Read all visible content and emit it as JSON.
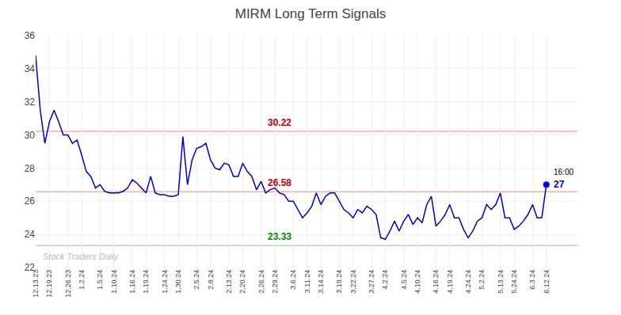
{
  "chart_data": {
    "type": "line",
    "title": "MIRM Long Term Signals",
    "categories": [
      "12.13.23",
      null,
      null,
      "12.19.23",
      null,
      null,
      null,
      "12.26.23",
      null,
      null,
      "1.2.24",
      null,
      null,
      null,
      "1.5.24",
      null,
      null,
      "1.10.24",
      null,
      null,
      null,
      "1.16.24",
      null,
      null,
      "1.19.24",
      null,
      null,
      null,
      "1.24.24",
      null,
      null,
      "1.30.24",
      null,
      null,
      null,
      "2.5.24",
      null,
      null,
      "2.8.24",
      null,
      null,
      null,
      "2.13.24",
      null,
      null,
      "2.20.24",
      null,
      null,
      null,
      "2.26.24",
      null,
      null,
      "2.29.24",
      null,
      null,
      null,
      "3.6.24",
      null,
      null,
      "3.11.24",
      null,
      null,
      "3.14.24",
      null,
      null,
      null,
      "3.19.24",
      null,
      null,
      "3.22.24",
      null,
      null,
      null,
      "3.27.24",
      null,
      null,
      "4.2.24",
      null,
      null,
      null,
      "4.5.24",
      null,
      null,
      "4.10.24",
      null,
      null,
      null,
      "4.16.24",
      null,
      null,
      "4.19.24",
      null,
      null,
      null,
      "4.24.24",
      null,
      null,
      "5.2.24",
      null,
      null,
      null,
      "5.13.24",
      null,
      null,
      "5.24.24",
      null,
      null,
      null,
      "6.3.24",
      null,
      null,
      "6.12.24"
    ],
    "values": [
      34.8,
      31.5,
      29.5,
      30.8,
      31.5,
      30.8,
      30.0,
      30.0,
      29.5,
      29.7,
      28.8,
      27.8,
      27.5,
      26.8,
      27.0,
      26.6,
      26.5,
      26.5,
      26.5,
      26.6,
      26.8,
      27.3,
      27.1,
      26.8,
      26.5,
      27.5,
      26.5,
      26.4,
      26.4,
      26.3,
      26.3,
      26.4,
      29.9,
      27.0,
      28.5,
      29.2,
      29.3,
      29.5,
      28.5,
      28.0,
      27.9,
      28.3,
      28.2,
      27.5,
      27.5,
      28.3,
      27.8,
      27.5,
      26.7,
      27.2,
      26.5,
      26.7,
      26.8,
      26.5,
      26.4,
      26.0,
      26.0,
      25.5,
      25.0,
      25.3,
      25.7,
      26.5,
      25.8,
      26.3,
      26.5,
      26.5,
      26.0,
      25.5,
      25.3,
      25.0,
      25.5,
      25.3,
      25.7,
      25.5,
      25.2,
      23.8,
      23.7,
      24.2,
      24.8,
      24.2,
      24.8,
      25.2,
      24.6,
      25.0,
      24.7,
      25.8,
      26.3,
      24.5,
      24.8,
      25.2,
      25.8,
      25.0,
      25.0,
      24.3,
      23.8,
      24.2,
      24.8,
      25.0,
      25.8,
      25.5,
      25.8,
      26.5,
      25.0,
      25.0,
      24.3,
      24.5,
      24.8,
      25.2,
      25.8,
      25.0,
      25.0,
      27.0
    ],
    "color": "#0000cc",
    "last_point": {
      "color": "#0000ee",
      "label": "27",
      "time_label": "16:00"
    },
    "hlines": [
      {
        "value": 30.22,
        "color": "#ffaaaa",
        "label": "30.22",
        "label_color": "#cc0000"
      },
      {
        "value": 26.58,
        "color": "#ffaaaa",
        "label": "26.58",
        "label_color": "#cc0000"
      },
      {
        "value": 23.33,
        "color": "#aaddaa",
        "label": "23.33",
        "label_color": "#008800"
      }
    ],
    "watermark": "Stock Traders Daily",
    "ylim": [
      22,
      36
    ],
    "yticks": [
      22,
      24,
      26,
      28,
      30,
      32,
      34,
      36
    ],
    "grid": true
  }
}
